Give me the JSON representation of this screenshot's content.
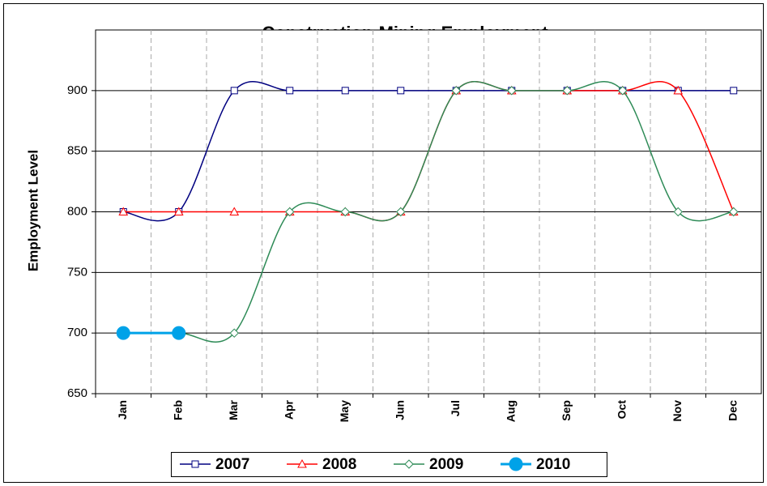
{
  "chart_data": {
    "type": "line",
    "title": "Construction-Mining Employment",
    "y_label": "Employment Level",
    "categories": [
      "Jan",
      "Feb",
      "Mar",
      "Apr",
      "May",
      "Jun",
      "Jul",
      "Aug",
      "Sep",
      "Oct",
      "Nov",
      "Dec"
    ],
    "series": [
      {
        "name": "2007",
        "color": "#000080",
        "marker": "square",
        "values": [
          800,
          800,
          900,
          900,
          900,
          900,
          900,
          900,
          900,
          900,
          900,
          900
        ]
      },
      {
        "name": "2008",
        "color": "#ff0000",
        "marker": "triangle",
        "values": [
          800,
          800,
          800,
          800,
          800,
          800,
          900,
          900,
          900,
          900,
          900,
          800
        ]
      },
      {
        "name": "2009",
        "color": "#2e8b57",
        "marker": "diamond",
        "values": [
          700,
          700,
          700,
          800,
          800,
          800,
          900,
          900,
          900,
          900,
          800,
          800
        ]
      },
      {
        "name": "2010",
        "color": "#00a2e8",
        "marker": "circle",
        "values": [
          700,
          700,
          null,
          null,
          null,
          null,
          null,
          null,
          null,
          null,
          null,
          null
        ]
      }
    ],
    "ylim": [
      650,
      950
    ],
    "yticks": [
      650,
      700,
      750,
      800,
      850,
      900
    ],
    "grid": true,
    "smooth": true,
    "legend": "bottom"
  }
}
